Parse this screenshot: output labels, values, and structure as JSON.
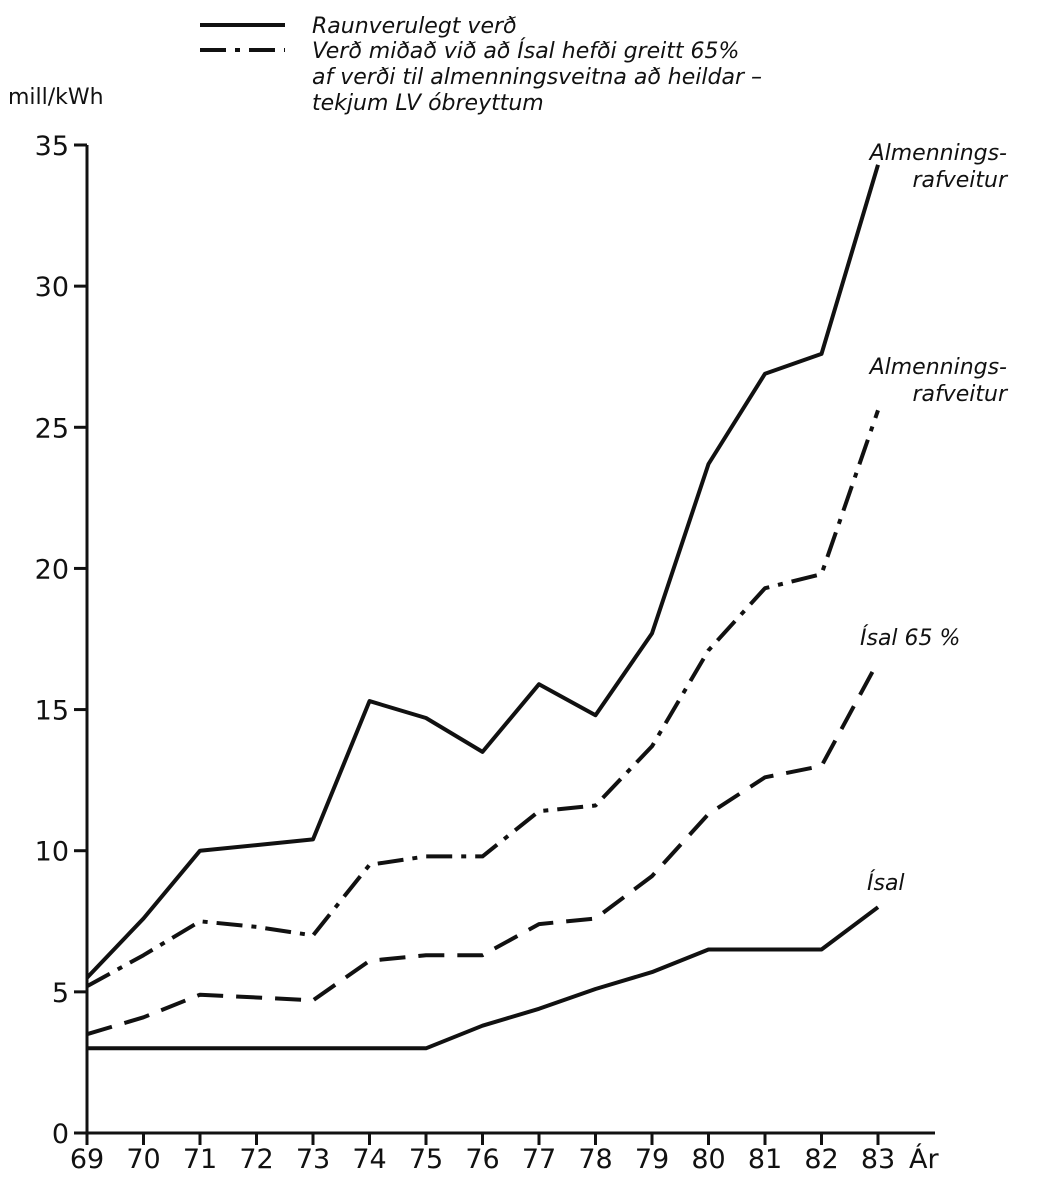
{
  "chart_data": {
    "type": "line",
    "title": "",
    "ylabel": "mill/kWh",
    "xlabel": "Ár",
    "ylim": [
      0,
      35
    ],
    "yticks": [
      0,
      5,
      10,
      15,
      20,
      25,
      30,
      35
    ],
    "x": [
      "69",
      "70",
      "71",
      "72",
      "73",
      "74",
      "75",
      "76",
      "77",
      "78",
      "79",
      "80",
      "81",
      "82",
      "83"
    ],
    "grid": false,
    "legend_position": "top",
    "legend": [
      {
        "label": "Raunverulegt verð",
        "style": "solid"
      },
      {
        "label_lines": [
          "Verð miðað við að Ísal hefði greitt 65%",
          "af verði til almenningsveitna að heildar –",
          "tekjum LV óbreyttum"
        ],
        "style": "dash-dot"
      }
    ],
    "series": [
      {
        "style": "solid",
        "label_lines": [
          "Almennings-",
          "rafveitur"
        ],
        "values": [
          5.5,
          7.6,
          10.0,
          10.2,
          10.4,
          15.3,
          14.7,
          13.5,
          15.9,
          14.8,
          17.7,
          23.7,
          26.9,
          27.6,
          34.3
        ]
      },
      {
        "style": "dash-dot",
        "label_lines": [
          "Almennings-",
          "rafveitur"
        ],
        "values": [
          5.2,
          6.3,
          7.5,
          7.3,
          7.0,
          9.5,
          9.8,
          9.8,
          11.4,
          11.6,
          13.7,
          17.1,
          19.3,
          19.8,
          25.6
        ]
      },
      {
        "style": "dashed",
        "label_lines": [
          "Ísal 65 %"
        ],
        "values": [
          3.5,
          4.1,
          4.9,
          4.8,
          4.7,
          6.1,
          6.3,
          6.3,
          7.4,
          7.6,
          9.1,
          11.3,
          12.6,
          13.0,
          16.7
        ]
      },
      {
        "style": "solid",
        "label_lines": [
          "Ísal"
        ],
        "values": [
          3.0,
          3.0,
          3.0,
          3.0,
          3.0,
          3.0,
          3.0,
          3.8,
          4.4,
          5.1,
          5.7,
          6.5,
          6.5,
          6.5,
          8.0
        ]
      }
    ]
  }
}
